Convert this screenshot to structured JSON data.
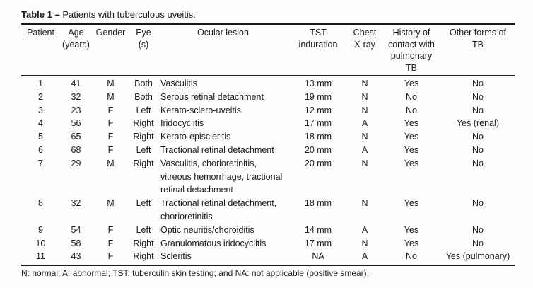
{
  "document": {
    "title": {
      "label": "Table 1",
      "separator": "–",
      "caption": "Patients with tuberculous uveitis."
    },
    "table": {
      "columns": [
        {
          "key": "patient",
          "lines": [
            "Patient"
          ]
        },
        {
          "key": "age",
          "lines": [
            "Age",
            "(years)"
          ]
        },
        {
          "key": "gender",
          "lines": [
            "Gender"
          ]
        },
        {
          "key": "eye",
          "lines": [
            "Eye",
            "(s)"
          ]
        },
        {
          "key": "ocular-lesion",
          "lines": [
            "Ocular lesion"
          ]
        },
        {
          "key": "tst-induration",
          "lines": [
            "TST",
            "induration"
          ]
        },
        {
          "key": "chest-xray",
          "lines": [
            "Chest",
            "X-ray"
          ]
        },
        {
          "key": "history-contact",
          "lines": [
            "History of",
            "contact with",
            "pulmonary",
            "TB"
          ]
        },
        {
          "key": "other-tb",
          "lines": [
            "Other forms of",
            "TB"
          ]
        }
      ],
      "rows": [
        [
          "1",
          "41",
          "M",
          "Both",
          "Vasculitis",
          "13 mm",
          "N",
          "Yes",
          "No"
        ],
        [
          "2",
          "32",
          "M",
          "Both",
          "Serous retinal detachment",
          "19 mm",
          "N",
          "No",
          "No"
        ],
        [
          "3",
          "23",
          "F",
          "Left",
          "Kerato-sclero-uveitis",
          "12 mm",
          "N",
          "No",
          "No"
        ],
        [
          "4",
          "56",
          "F",
          "Right",
          "Iridocyclitis",
          "17 mm",
          "A",
          "Yes",
          "Yes (renal)"
        ],
        [
          "5",
          "65",
          "F",
          "Right",
          "Kerato-episcleritis",
          "18 mm",
          "N",
          "Yes",
          "No"
        ],
        [
          "6",
          "68",
          "F",
          "Left",
          "Tractional retinal detachment",
          "20 mm",
          "A",
          "Yes",
          "No"
        ],
        [
          "7",
          "29",
          "M",
          "Right",
          "Vasculitis, chorioretinitis,\nvitreous hemorrhage, tractional\nretinal detachment",
          "20 mm",
          "N",
          "Yes",
          "No"
        ],
        [
          "8",
          "32",
          "M",
          "Left",
          "Tractional retinal detachment,\nchorioretinitis",
          "18 mm",
          "N",
          "Yes",
          "No"
        ],
        [
          "9",
          "54",
          "F",
          "Left",
          "Optic neuritis/choroiditis",
          "14 mm",
          "A",
          "Yes",
          "No"
        ],
        [
          "10",
          "58",
          "F",
          "Right",
          "Granulomatous iridocyclitis",
          "17 mm",
          "N",
          "Yes",
          "No"
        ],
        [
          "11",
          "43",
          "F",
          "Right",
          "Scleritis",
          "NA",
          "A",
          "No",
          "Yes (pulmonary)"
        ]
      ]
    },
    "footnote": "N: normal; A: abnormal; TST: tuberculin skin testing; and NA: not applicable (positive smear)."
  }
}
